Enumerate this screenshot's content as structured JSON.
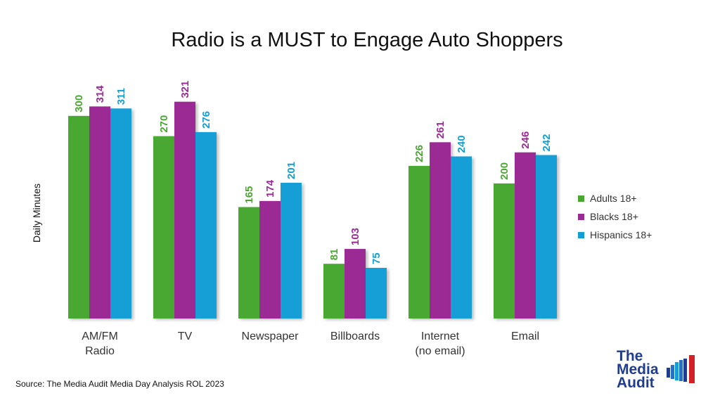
{
  "chart_data": {
    "type": "bar",
    "title": "Radio is a MUST to Engage Auto Shoppers",
    "ylabel": "Daily Minutes",
    "categories": [
      [
        "AM/FM",
        "Radio"
      ],
      [
        "TV"
      ],
      [
        "Newspaper"
      ],
      [
        "Billboards"
      ],
      [
        "Internet",
        "(no email)"
      ],
      [
        "Email"
      ]
    ],
    "series": [
      {
        "name": "Adults 18+",
        "color": "#4aa832",
        "values": [
          300,
          270,
          165,
          81,
          226,
          200
        ]
      },
      {
        "name": "Blacks 18+",
        "color": "#9b2b94",
        "values": [
          314,
          321,
          174,
          103,
          261,
          246
        ]
      },
      {
        "name": "Hispanics 18+",
        "color": "#139fd6",
        "values": [
          311,
          276,
          201,
          75,
          240,
          242
        ]
      }
    ],
    "ylim": [
      0,
      340
    ],
    "grid": false,
    "legend_position": "right",
    "data_labels": true
  },
  "source": "Source: The Media Audit Media Day Analysis ROL 2023",
  "logo": {
    "lines": [
      "The",
      "Media",
      "Audit"
    ]
  }
}
